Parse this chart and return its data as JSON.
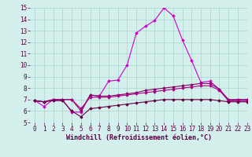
{
  "x": [
    0,
    1,
    2,
    3,
    4,
    5,
    6,
    7,
    8,
    9,
    10,
    11,
    12,
    13,
    14,
    15,
    16,
    17,
    18,
    19,
    20,
    21,
    22,
    23
  ],
  "line1": [
    6.9,
    6.4,
    7.0,
    7.0,
    5.9,
    5.9,
    7.4,
    7.3,
    8.6,
    8.7,
    10.0,
    12.8,
    13.4,
    13.9,
    15.0,
    14.3,
    12.2,
    10.4,
    8.5,
    8.6,
    7.9,
    6.9,
    7.0,
    7.0
  ],
  "line2": [
    6.9,
    6.8,
    7.0,
    7.0,
    7.0,
    6.0,
    7.4,
    7.3,
    7.3,
    7.4,
    7.5,
    7.6,
    7.8,
    7.9,
    8.0,
    8.1,
    8.2,
    8.3,
    8.4,
    8.4,
    7.9,
    7.0,
    7.0,
    7.0
  ],
  "line3": [
    6.9,
    6.8,
    7.0,
    7.0,
    7.0,
    6.2,
    7.2,
    7.2,
    7.2,
    7.3,
    7.4,
    7.5,
    7.6,
    7.7,
    7.8,
    7.9,
    8.0,
    8.1,
    8.2,
    8.2,
    7.8,
    6.9,
    6.9,
    6.9
  ],
  "line4": [
    6.9,
    6.8,
    6.9,
    6.9,
    6.0,
    5.5,
    6.2,
    6.3,
    6.4,
    6.5,
    6.6,
    6.7,
    6.8,
    6.9,
    7.0,
    7.0,
    7.0,
    7.0,
    7.0,
    7.0,
    6.9,
    6.8,
    6.8,
    6.8
  ],
  "bg_color": "#d4f0ec",
  "line_color1": "#cc00cc",
  "line_color2": "#880066",
  "line_color3": "#aa0088",
  "line_color4": "#660044",
  "grid_color": "#aad4cc",
  "xlabel": "Windchill (Refroidissement éolien,°C)",
  "ylim": [
    5,
    15
  ],
  "xlim": [
    -0.5,
    23
  ],
  "yticks": [
    5,
    6,
    7,
    8,
    9,
    10,
    11,
    12,
    13,
    14,
    15
  ],
  "xticks": [
    0,
    1,
    2,
    3,
    4,
    5,
    6,
    7,
    8,
    9,
    10,
    11,
    12,
    13,
    14,
    15,
    16,
    17,
    18,
    19,
    20,
    21,
    22,
    23
  ],
  "marker": "D",
  "markersize": 1.8,
  "linewidth": 0.8,
  "tick_fontsize": 5.5,
  "xlabel_fontsize": 6.0
}
